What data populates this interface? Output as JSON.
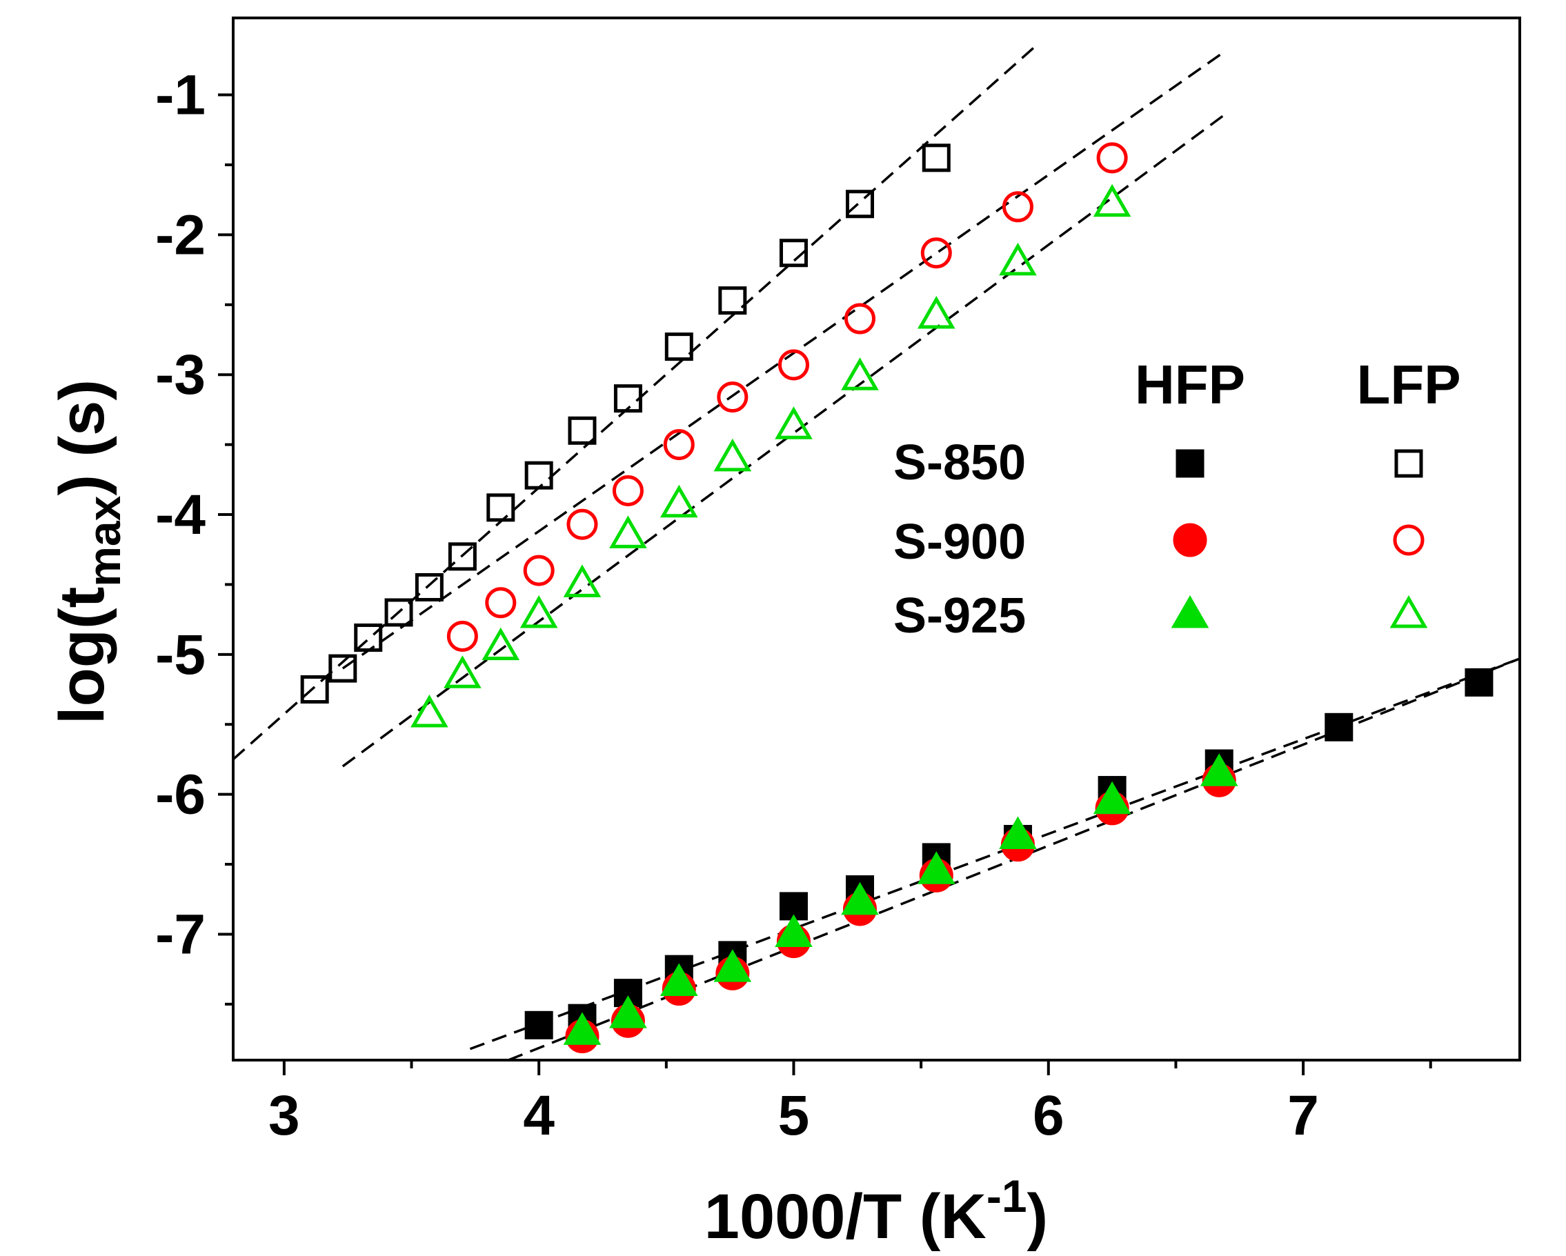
{
  "chart_data": {
    "type": "scatter",
    "title": "",
    "xlabel": {
      "main": "1000/T (K",
      "sup": "-1",
      "close": ")"
    },
    "ylabel": {
      "main": "log(t",
      "sub": "max",
      "close": ") (s)"
    },
    "xlim": [
      2.8,
      7.85
    ],
    "ylim": [
      -7.9,
      -0.45
    ],
    "xticks_major": [
      3,
      4,
      5,
      6,
      7
    ],
    "xticks_minor": [
      3.5,
      4.5,
      5.5,
      6.5,
      7.5
    ],
    "yticks_major": [
      -7,
      -6,
      -5,
      -4,
      -3,
      -2,
      -1
    ],
    "yticks_minor": [
      -7.5,
      -6.5,
      -5.5,
      -4.5,
      -3.5,
      -2.5,
      -1.5
    ],
    "xtick_labels": [
      "3",
      "4",
      "5",
      "6",
      "7"
    ],
    "ytick_labels": [
      "-7",
      "-6",
      "-5",
      "-4",
      "-3",
      "-2",
      "-1"
    ],
    "grid": false,
    "legend": {
      "position": "right",
      "col_headers": [
        "HFP",
        "LFP"
      ],
      "rows": [
        "S-850",
        "S-900",
        "S-925"
      ]
    },
    "colors": {
      "S-850": "#000000",
      "S-900": "#ff0000",
      "S-925": "#00dd00",
      "fit": "#000000"
    },
    "series": [
      {
        "name": "S-850 HFP",
        "sample": "S-850",
        "marker": "square",
        "filled": true,
        "x": [
          4.0,
          4.17,
          4.35,
          4.55,
          4.76,
          5.0,
          5.26,
          5.56,
          5.88,
          6.25,
          6.67,
          7.14,
          7.69
        ],
        "y": [
          -7.65,
          -7.6,
          -7.42,
          -7.25,
          -7.15,
          -6.8,
          -6.68,
          -6.45,
          -6.32,
          -5.97,
          -5.78,
          -5.52,
          -5.2
        ]
      },
      {
        "name": "S-900 HFP",
        "sample": "S-900",
        "marker": "circle",
        "filled": true,
        "x": [
          4.17,
          4.35,
          4.55,
          4.76,
          5.0,
          5.26,
          5.56,
          5.88,
          6.25,
          6.67
        ],
        "y": [
          -7.73,
          -7.62,
          -7.39,
          -7.28,
          -7.05,
          -6.82,
          -6.58,
          -6.36,
          -6.1,
          -5.9
        ]
      },
      {
        "name": "S-925 HFP",
        "sample": "S-925",
        "marker": "triangle",
        "filled": true,
        "x": [
          4.17,
          4.35,
          4.55,
          4.76,
          5.0,
          5.26,
          5.56,
          5.88,
          6.25,
          6.67
        ],
        "y": [
          -7.7,
          -7.58,
          -7.35,
          -7.25,
          -7.0,
          -6.77,
          -6.55,
          -6.3,
          -6.05,
          -5.85
        ]
      },
      {
        "name": "S-850 LFP",
        "sample": "S-850",
        "marker": "square",
        "filled": false,
        "x": [
          3.12,
          3.23,
          3.33,
          3.45,
          3.57,
          3.7,
          3.85,
          4.0,
          4.17,
          4.35,
          4.55,
          4.76,
          5.0,
          5.26,
          5.56
        ],
        "y": [
          -5.25,
          -5.1,
          -4.88,
          -4.7,
          -4.52,
          -4.3,
          -3.95,
          -3.72,
          -3.4,
          -3.17,
          -2.8,
          -2.47,
          -2.13,
          -1.78,
          -1.45
        ]
      },
      {
        "name": "S-900 LFP",
        "sample": "S-900",
        "marker": "circle",
        "filled": false,
        "x": [
          3.7,
          3.85,
          4.0,
          4.17,
          4.35,
          4.55,
          4.76,
          5.0,
          5.26,
          5.56,
          5.88,
          6.25
        ],
        "y": [
          -4.87,
          -4.63,
          -4.4,
          -4.07,
          -3.83,
          -3.5,
          -3.16,
          -2.93,
          -2.6,
          -2.13,
          -1.8,
          -1.45
        ]
      },
      {
        "name": "S-925 LFP",
        "sample": "S-925",
        "marker": "triangle",
        "filled": false,
        "x": [
          3.57,
          3.7,
          3.85,
          4.0,
          4.17,
          4.35,
          4.55,
          4.76,
          5.0,
          5.26,
          5.56,
          5.88,
          6.25
        ],
        "y": [
          -5.43,
          -5.15,
          -4.95,
          -4.72,
          -4.5,
          -4.15,
          -3.93,
          -3.6,
          -3.37,
          -3.02,
          -2.58,
          -2.2,
          -1.78
        ]
      }
    ],
    "fit_lines": [
      {
        "name": "S-850 LFP fit",
        "x": [
          2.8,
          5.95
        ],
        "y": [
          -5.75,
          -0.65
        ]
      },
      {
        "name": "S-900 LFP fit",
        "x": [
          3.23,
          6.7
        ],
        "y": [
          -5.1,
          -0.68
        ]
      },
      {
        "name": "S-925 LFP fit",
        "x": [
          3.23,
          6.7
        ],
        "y": [
          -5.8,
          -1.13
        ]
      },
      {
        "name": "HFP fit 1",
        "x": [
          3.73,
          7.85
        ],
        "y": [
          -7.82,
          -5.03
        ]
      },
      {
        "name": "HFP fit 2",
        "x": [
          3.88,
          7.85
        ],
        "y": [
          -7.9,
          -5.03
        ]
      }
    ]
  }
}
